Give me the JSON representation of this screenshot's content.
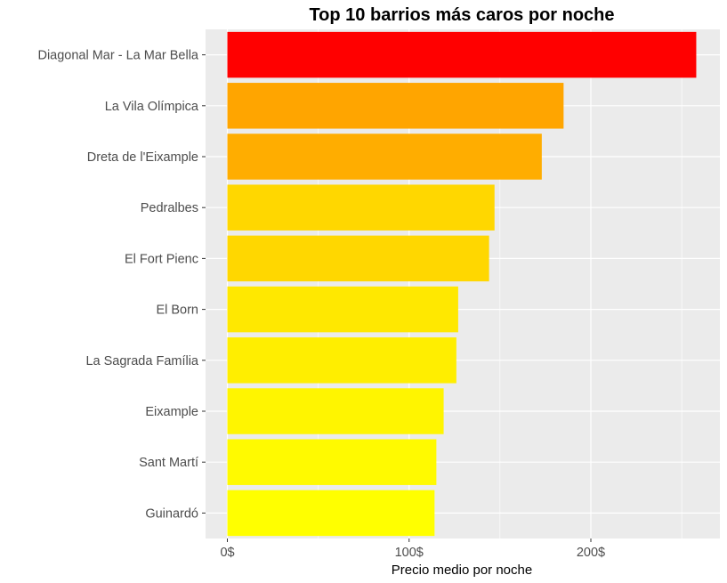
{
  "chart_data": {
    "type": "bar",
    "orientation": "horizontal",
    "title": "Top 10 barrios más caros por noche",
    "xlabel": "Precio medio por noche",
    "ylabel": "",
    "xlim": [
      -12,
      271
    ],
    "x_ticks": [
      0,
      100,
      200
    ],
    "x_tick_labels": [
      "0$",
      "100$",
      "200$"
    ],
    "grid": true,
    "legend": "none",
    "categories": [
      "Diagonal Mar - La Mar Bella",
      "La Vila Olímpica",
      "Dreta de l'Eixample",
      "Pedralbes",
      "El Fort Pienc",
      "El Born",
      "La Sagrada Família",
      "Eixample",
      "Sant Martí",
      "Guinardó"
    ],
    "values": [
      258,
      185,
      173,
      147,
      144,
      127,
      126,
      119,
      115,
      114
    ],
    "colors": [
      "#ff0000",
      "#ffa500",
      "#ffad00",
      "#ffd700",
      "#ffd700",
      "#ffe800",
      "#ffee00",
      "#fff500",
      "#fffa00",
      "#ffff00"
    ]
  }
}
